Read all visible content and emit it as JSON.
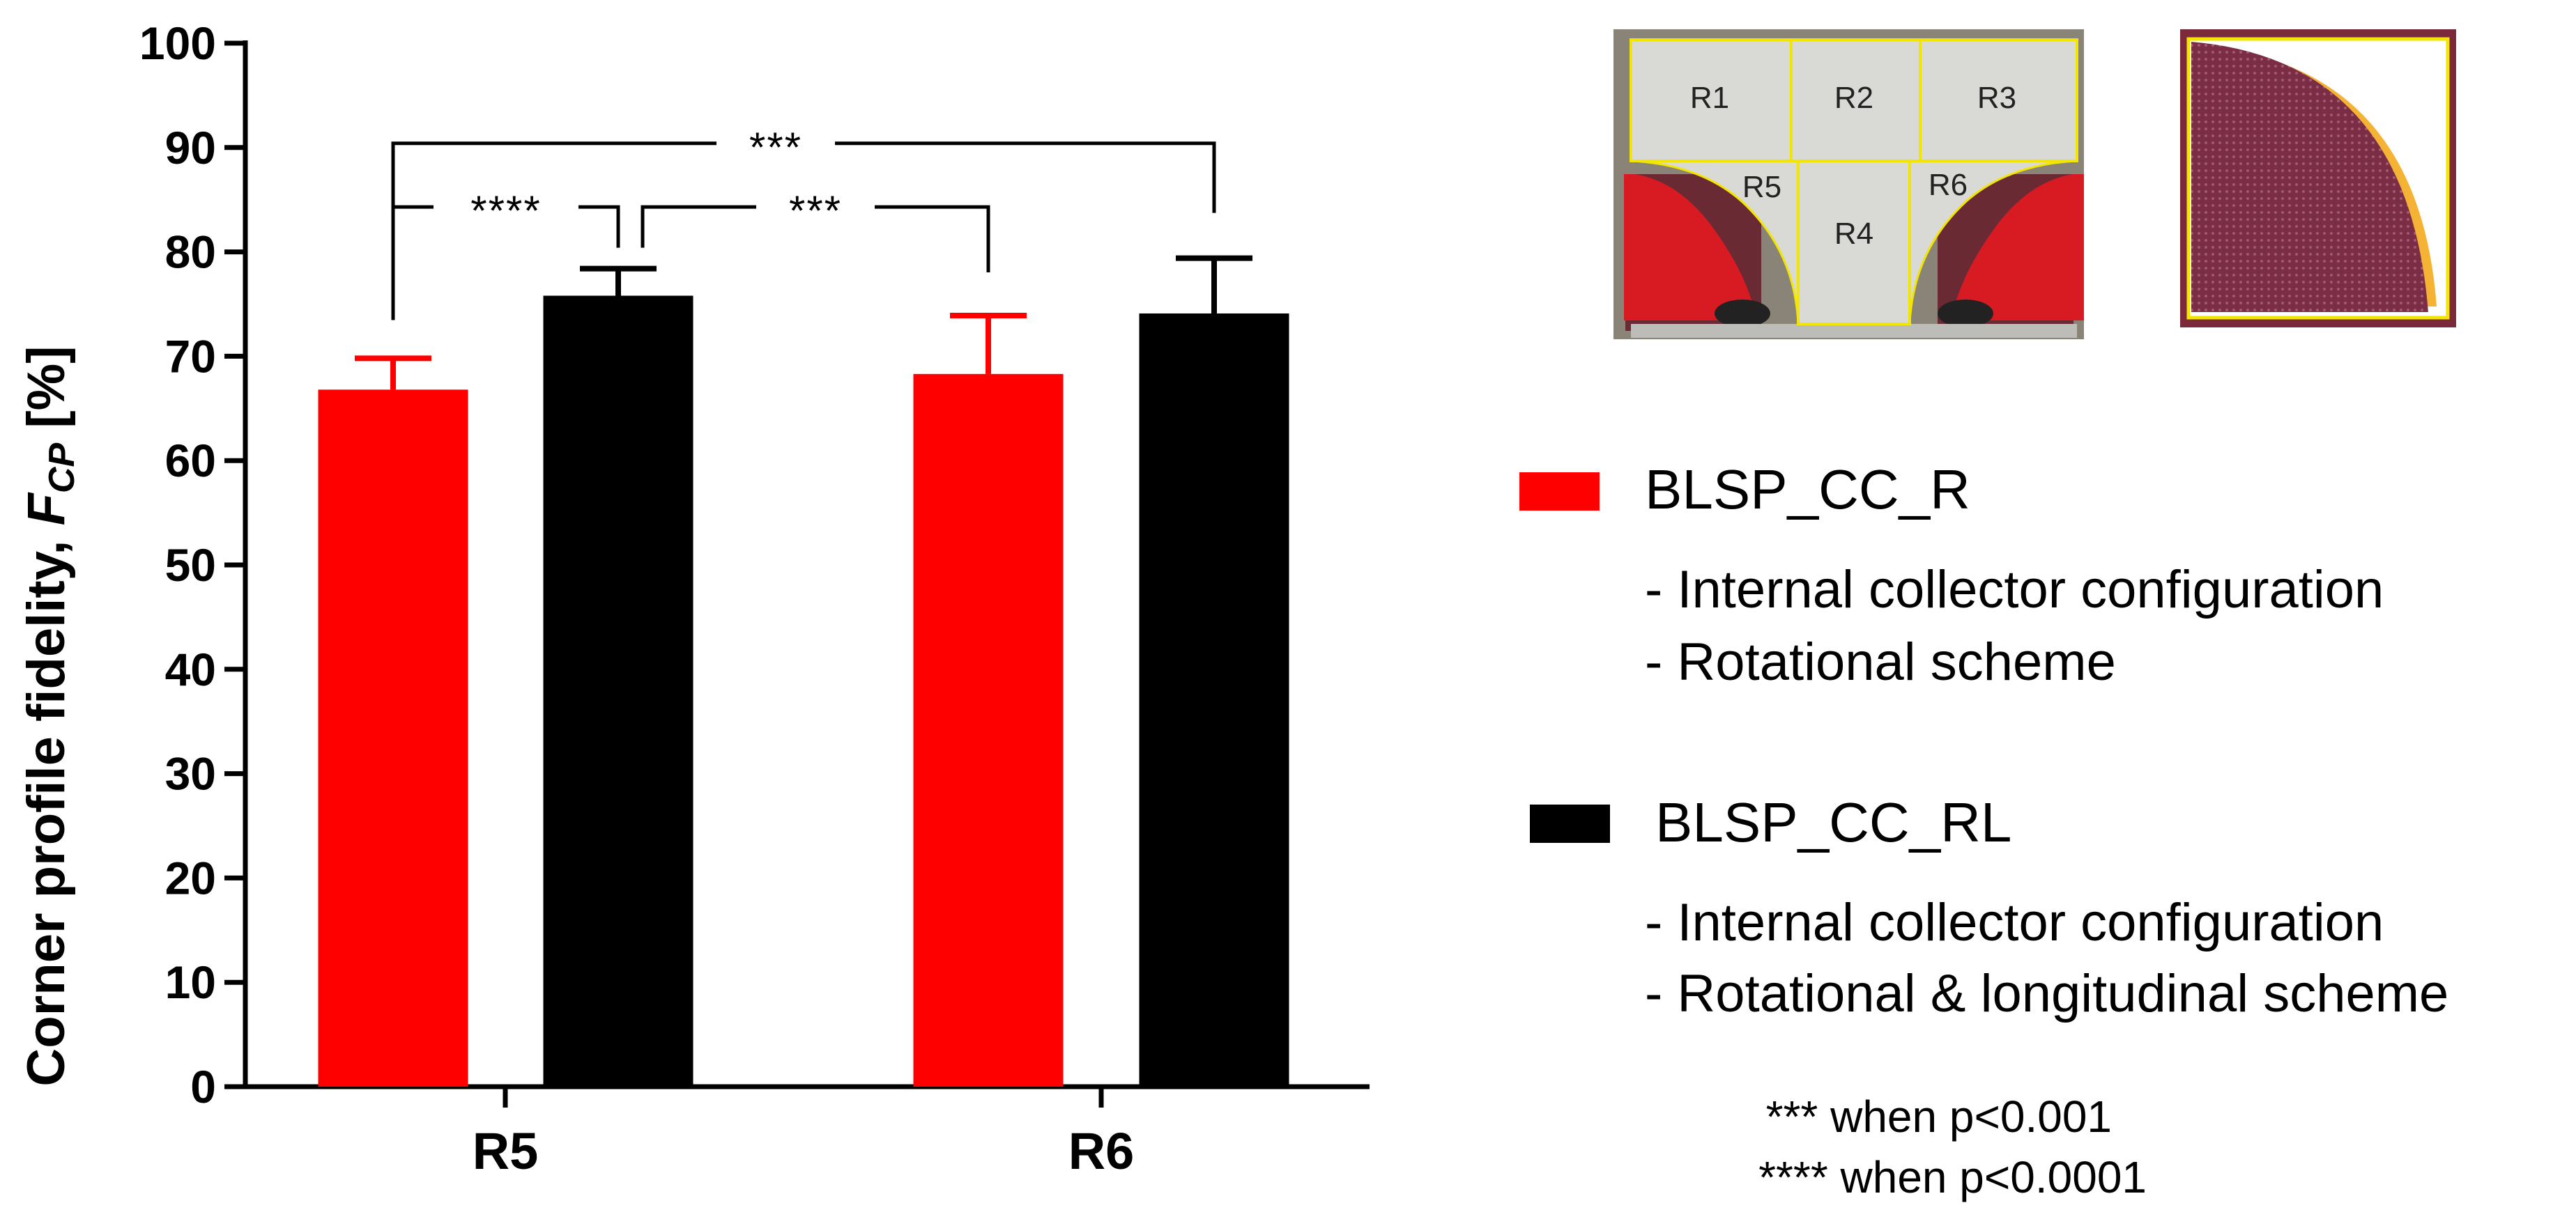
{
  "chart_data": {
    "type": "bar",
    "categories": [
      "R5",
      "R6"
    ],
    "ylabel": "Corner profile fidelity,",
    "ylabel_symbol": "F",
    "ylabel_subscript": "CP",
    "ylabel_unit": "[%]",
    "ylim": [
      0,
      100
    ],
    "yticks": [
      0,
      10,
      20,
      30,
      40,
      50,
      60,
      70,
      80,
      90,
      100
    ],
    "grid": false,
    "series": [
      {
        "name": "BLSP_CC_R",
        "color": "#ff0000",
        "values": [
          66.8,
          68.3
        ],
        "errors": [
          3.0,
          5.6
        ],
        "descriptions": [
          "- Internal collector configuration",
          "- Rotational scheme"
        ]
      },
      {
        "name": "BLSP_CC_RL",
        "color": "#000000",
        "values": [
          75.8,
          74.1
        ],
        "errors": [
          2.6,
          5.3
        ],
        "descriptions": [
          "- Internal collector configuration",
          "- Rotational & longitudinal scheme"
        ]
      }
    ],
    "significance": [
      {
        "label": "***",
        "from": [
          0,
          0
        ],
        "to": [
          1,
          1
        ]
      },
      {
        "label": "****",
        "from": [
          0,
          0
        ],
        "to": [
          0,
          1
        ]
      },
      {
        "label": "***",
        "from": [
          0,
          1
        ],
        "to": [
          1,
          0
        ]
      }
    ],
    "legend_placement": "right",
    "notes": [
      "*** when p<0.001",
      "**** when p<0.0001"
    ]
  },
  "photo": {
    "region_labels": [
      "R1",
      "R2",
      "R3",
      "R4",
      "R5",
      "R6"
    ],
    "colors": {
      "frame": "#7a2a3a",
      "outline": "#f2e600",
      "fill": "#7b2d45",
      "accent": "#ff0000"
    }
  }
}
